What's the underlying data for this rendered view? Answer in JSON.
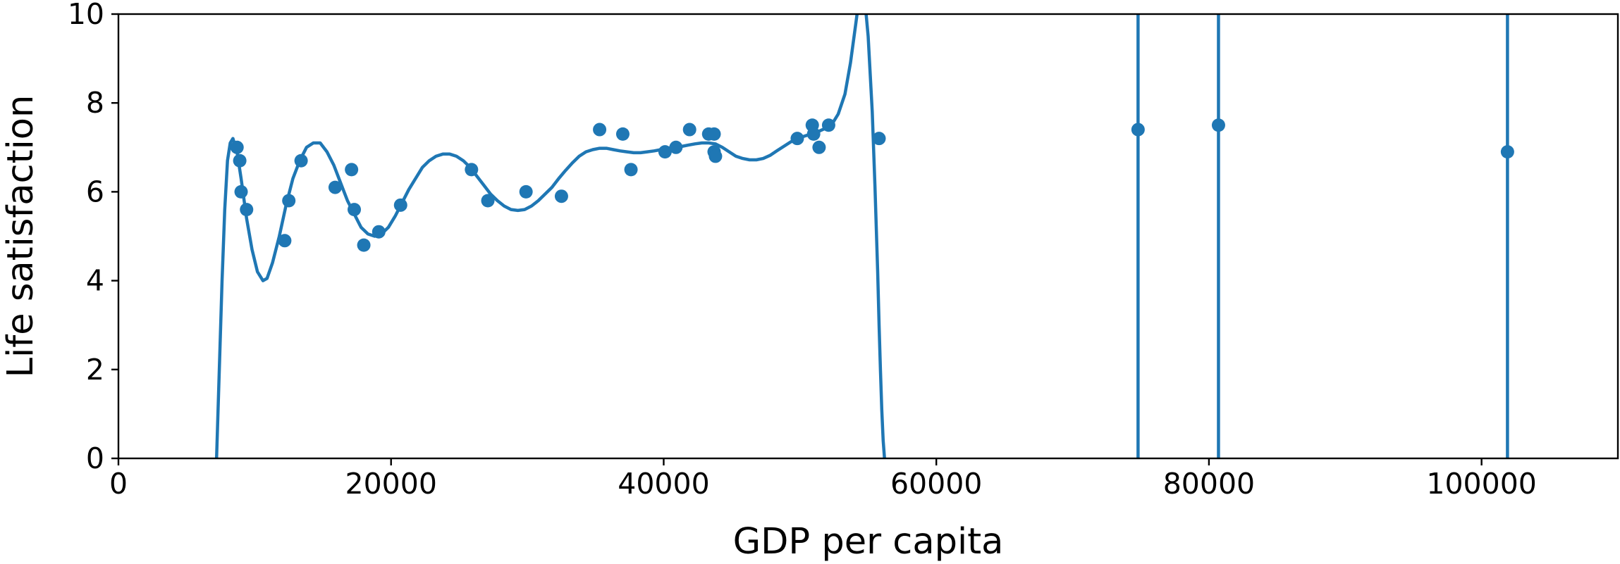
{
  "chart_data": {
    "type": "scatter",
    "title": "",
    "xlabel": "GDP per capita",
    "ylabel": "Life satisfaction",
    "xlim": [
      0,
      110000
    ],
    "ylim": [
      0,
      10
    ],
    "x_ticks": [
      0,
      20000,
      40000,
      60000,
      80000,
      100000
    ],
    "x_tick_labels": [
      "0",
      "20000",
      "40000",
      "60000",
      "80000",
      "100000"
    ],
    "y_ticks": [
      0,
      2,
      4,
      6,
      8,
      10
    ],
    "y_tick_labels": [
      "0",
      "2",
      "4",
      "6",
      "8",
      "10"
    ],
    "grid": false,
    "legend": "none",
    "color": "#1f77b4",
    "points": [
      {
        "x": 8700,
        "y": 7.0
      },
      {
        "x": 8900,
        "y": 6.7
      },
      {
        "x": 9000,
        "y": 6.0
      },
      {
        "x": 9400,
        "y": 5.6
      },
      {
        "x": 12200,
        "y": 4.9
      },
      {
        "x": 12500,
        "y": 5.8
      },
      {
        "x": 13400,
        "y": 6.7
      },
      {
        "x": 15900,
        "y": 6.1
      },
      {
        "x": 17100,
        "y": 6.5
      },
      {
        "x": 17300,
        "y": 5.6
      },
      {
        "x": 18000,
        "y": 4.8
      },
      {
        "x": 19100,
        "y": 5.1
      },
      {
        "x": 20700,
        "y": 5.7
      },
      {
        "x": 25900,
        "y": 6.5
      },
      {
        "x": 27100,
        "y": 5.8
      },
      {
        "x": 29900,
        "y": 6.0
      },
      {
        "x": 32500,
        "y": 5.9
      },
      {
        "x": 35300,
        "y": 7.4
      },
      {
        "x": 37000,
        "y": 7.3
      },
      {
        "x": 37600,
        "y": 6.5
      },
      {
        "x": 40100,
        "y": 6.9
      },
      {
        "x": 40900,
        "y": 7.0
      },
      {
        "x": 41900,
        "y": 7.4
      },
      {
        "x": 43300,
        "y": 7.3
      },
      {
        "x": 43700,
        "y": 7.3
      },
      {
        "x": 43700,
        "y": 6.9
      },
      {
        "x": 43800,
        "y": 6.8
      },
      {
        "x": 49800,
        "y": 7.2
      },
      {
        "x": 50900,
        "y": 7.5
      },
      {
        "x": 51000,
        "y": 7.3
      },
      {
        "x": 51400,
        "y": 7.0
      },
      {
        "x": 52100,
        "y": 7.5
      },
      {
        "x": 55800,
        "y": 7.2
      },
      {
        "x": 74800,
        "y": 7.4
      },
      {
        "x": 80700,
        "y": 7.5
      },
      {
        "x": 101900,
        "y": 6.9
      }
    ],
    "model_curve": {
      "x": [
        7200,
        7400,
        7600,
        7800,
        8000,
        8200,
        8400,
        8700,
        9000,
        9400,
        9800,
        10200,
        10600,
        10900,
        11300,
        11800,
        12300,
        12800,
        13300,
        13800,
        14300,
        14800,
        15300,
        15800,
        16300,
        16800,
        17300,
        17800,
        18300,
        18800,
        19300,
        19800,
        20300,
        20800,
        21300,
        21800,
        22300,
        22800,
        23300,
        23800,
        24300,
        24800,
        25300,
        25800,
        26300,
        26800,
        27300,
        27800,
        28300,
        28800,
        29300,
        29800,
        30300,
        30800,
        31300,
        31800,
        32300,
        32800,
        33300,
        33800,
        34300,
        34800,
        35300,
        35800,
        36300,
        36800,
        37300,
        37800,
        38300,
        38800,
        39300,
        39800,
        40300,
        40800,
        41300,
        41800,
        42300,
        42800,
        43300,
        43800,
        44300,
        44800,
        45300,
        45800,
        46300,
        46800,
        47300,
        47800,
        48300,
        48800,
        49300,
        49800,
        50300,
        50800,
        51300,
        51800,
        52300,
        52800,
        53300,
        53700,
        54100,
        54400,
        54700,
        55000,
        55300,
        55500,
        55700,
        55800,
        55900,
        56000,
        56100,
        56200
      ],
      "y": [
        0,
        2.0,
        4.0,
        5.6,
        6.7,
        7.1,
        7.2,
        6.9,
        6.3,
        5.4,
        4.7,
        4.2,
        4.0,
        4.05,
        4.4,
        5.0,
        5.7,
        6.3,
        6.7,
        7.0,
        7.1,
        7.1,
        6.9,
        6.6,
        6.2,
        5.8,
        5.5,
        5.2,
        5.05,
        5.0,
        5.05,
        5.2,
        5.45,
        5.75,
        6.05,
        6.3,
        6.55,
        6.7,
        6.8,
        6.85,
        6.85,
        6.8,
        6.7,
        6.55,
        6.35,
        6.15,
        5.95,
        5.8,
        5.68,
        5.6,
        5.58,
        5.6,
        5.68,
        5.8,
        5.95,
        6.1,
        6.3,
        6.48,
        6.65,
        6.8,
        6.9,
        6.95,
        6.98,
        6.98,
        6.95,
        6.92,
        6.9,
        6.88,
        6.88,
        6.9,
        6.92,
        6.95,
        6.98,
        7.0,
        7.02,
        7.05,
        7.08,
        7.1,
        7.1,
        7.08,
        7.0,
        6.9,
        6.8,
        6.75,
        6.72,
        6.72,
        6.75,
        6.82,
        6.92,
        7.02,
        7.12,
        7.2,
        7.25,
        7.3,
        7.35,
        7.42,
        7.5,
        7.75,
        8.2,
        8.9,
        9.8,
        10.5,
        10.5,
        9.5,
        7.8,
        6.1,
        4.2,
        3.0,
        2.0,
        1.1,
        0.4,
        0
      ]
    },
    "vertical_lines_x": [
      74800,
      80700,
      101900
    ]
  }
}
